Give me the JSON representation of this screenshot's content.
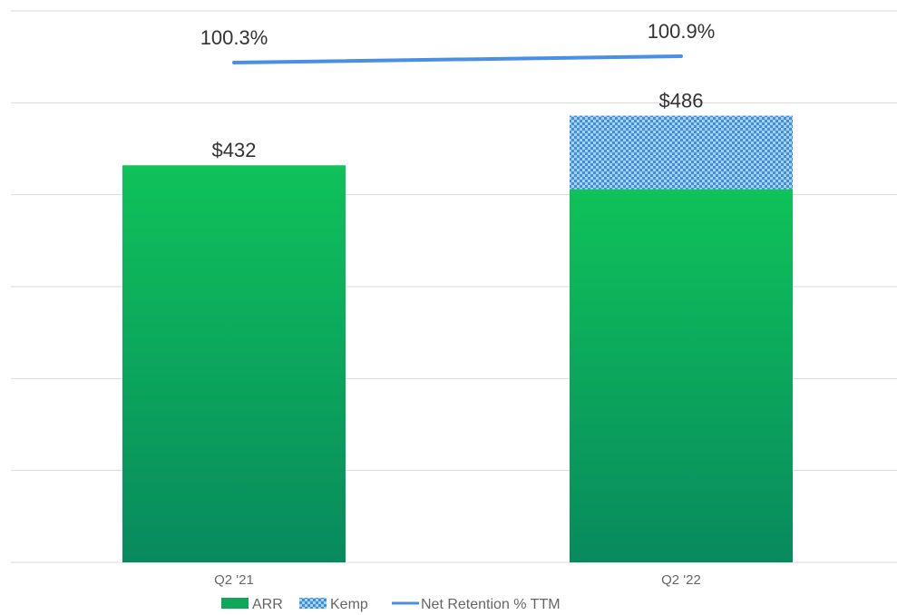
{
  "chart_data": {
    "type": "bar",
    "stacked": true,
    "categories": [
      "Q2 '21",
      "Q2 '22"
    ],
    "series": [
      {
        "name": "ARR",
        "kind": "bar",
        "values": [
          432,
          406
        ],
        "color": "#0fc25a",
        "color_dark": "#088a5e"
      },
      {
        "name": "Kemp",
        "kind": "bar",
        "values": [
          0,
          80
        ],
        "color": "#5aa0e6",
        "pattern": "dotted"
      },
      {
        "name": "Net Retention % TTM",
        "kind": "line",
        "values": [
          100.3,
          100.9
        ],
        "color": "#4a8fe6"
      }
    ],
    "bar_totals": [
      "$432",
      "$486"
    ],
    "line_labels": [
      "100.3%",
      "100.9%"
    ],
    "ylim": [
      0,
      600
    ],
    "grid": true,
    "legend": "bottom"
  }
}
